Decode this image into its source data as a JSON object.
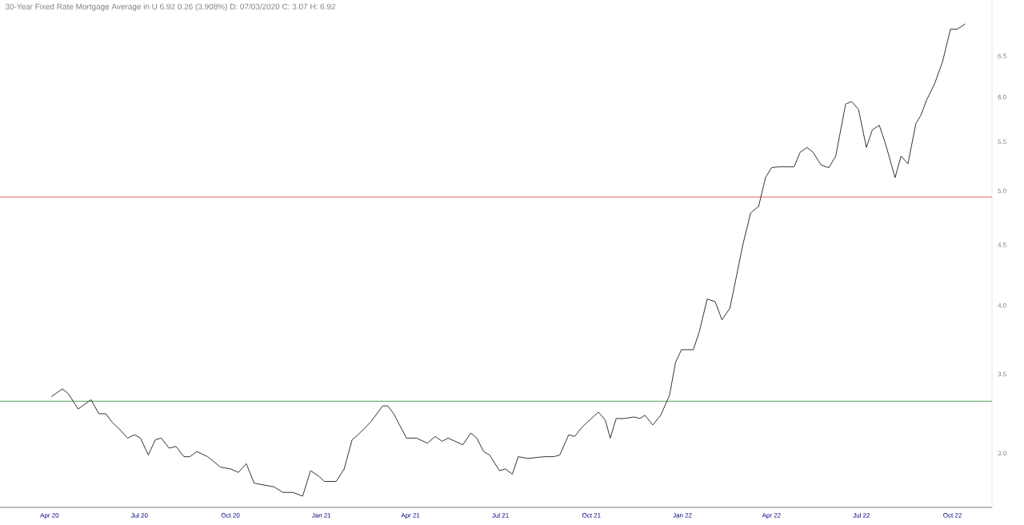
{
  "chart_data": {
    "type": "line",
    "title": "30-Year Fixed Rate Mortgage Average in U 6.92 0.26 (3.908%) D: 07/03/2020 C: 3.07 H: 6.92",
    "x": [
      "2020-04-03",
      "2020-04-14",
      "2020-04-20",
      "2020-04-30",
      "2020-05-13",
      "2020-05-21",
      "2020-05-28",
      "2020-06-03",
      "2020-06-13",
      "2020-06-19",
      "2020-06-26",
      "2020-07-02",
      "2020-07-10",
      "2020-07-17",
      "2020-07-23",
      "2020-07-31",
      "2020-08-07",
      "2020-08-15",
      "2020-08-21",
      "2020-08-28",
      "2020-09-08",
      "2020-09-21",
      "2020-10-01",
      "2020-10-09",
      "2020-10-17",
      "2020-10-25",
      "2020-11-04",
      "2020-11-14",
      "2020-11-23",
      "2020-12-03",
      "2020-12-13",
      "2020-12-21",
      "2020-12-29",
      "2021-01-04",
      "2021-01-16",
      "2021-01-24",
      "2021-02-01",
      "2021-02-07",
      "2021-02-20",
      "2021-03-04",
      "2021-03-09",
      "2021-03-15",
      "2021-03-28",
      "2021-04-07",
      "2021-04-18",
      "2021-04-26",
      "2021-05-03",
      "2021-05-09",
      "2021-05-24",
      "2021-06-01",
      "2021-06-07",
      "2021-06-14",
      "2021-06-20",
      "2021-06-30",
      "2021-07-06",
      "2021-07-13",
      "2021-07-19",
      "2021-07-29",
      "2021-08-14",
      "2021-08-24",
      "2021-08-30",
      "2021-09-08",
      "2021-09-14",
      "2021-09-22",
      "2021-10-08",
      "2021-10-15",
      "2021-10-20",
      "2021-10-26",
      "2021-11-03",
      "2021-11-13",
      "2021-11-19",
      "2021-11-24",
      "2021-12-02",
      "2021-12-10",
      "2021-12-19",
      "2021-12-25",
      "2021-12-31",
      "2022-01-12",
      "2022-01-18",
      "2022-01-26",
      "2022-02-03",
      "2022-02-10",
      "2022-02-18",
      "2022-02-25",
      "2022-03-03",
      "2022-03-11",
      "2022-03-19",
      "2022-03-26",
      "2022-04-01",
      "2022-04-09",
      "2022-04-17",
      "2022-04-24",
      "2022-04-30",
      "2022-05-07",
      "2022-05-13",
      "2022-05-21",
      "2022-05-29",
      "2022-06-05",
      "2022-06-15",
      "2022-06-21",
      "2022-06-28",
      "2022-07-06",
      "2022-07-12",
      "2022-07-19",
      "2022-07-25",
      "2022-08-04",
      "2022-08-10",
      "2022-08-17",
      "2022-08-25",
      "2022-08-30",
      "2022-09-05",
      "2022-09-13",
      "2022-09-21",
      "2022-09-29",
      "2022-10-06",
      "2022-10-14"
    ],
    "series": [
      {
        "color": "#333333",
        "values": [
          3.35,
          3.4,
          3.37,
          3.27,
          3.33,
          3.24,
          3.24,
          3.19,
          3.13,
          3.09,
          3.11,
          3.09,
          2.99,
          3.08,
          3.09,
          3.03,
          3.04,
          2.98,
          2.98,
          3.01,
          2.98,
          2.92,
          2.91,
          2.89,
          2.94,
          2.83,
          2.82,
          2.81,
          2.78,
          2.78,
          2.76,
          2.9,
          2.87,
          2.84,
          2.84,
          2.91,
          3.08,
          3.11,
          3.19,
          3.29,
          3.29,
          3.24,
          3.09,
          3.09,
          3.06,
          3.1,
          3.07,
          3.09,
          3.05,
          3.12,
          3.09,
          3.01,
          2.99,
          2.9,
          2.91,
          2.88,
          2.98,
          2.97,
          2.98,
          2.98,
          2.99,
          3.11,
          3.1,
          3.16,
          3.25,
          3.2,
          3.09,
          3.21,
          3.21,
          3.22,
          3.21,
          3.23,
          3.17,
          3.23,
          3.36,
          3.58,
          3.67,
          3.67,
          3.8,
          4.05,
          4.03,
          3.89,
          3.98,
          4.25,
          4.5,
          4.79,
          4.85,
          5.13,
          5.23,
          5.24,
          5.24,
          5.24,
          5.39,
          5.44,
          5.39,
          5.26,
          5.23,
          5.35,
          5.92,
          5.95,
          5.86,
          5.44,
          5.63,
          5.68,
          5.49,
          5.13,
          5.35,
          5.27,
          5.7,
          5.79,
          5.97,
          6.16,
          6.43,
          6.85,
          6.85,
          6.92
        ]
      }
    ],
    "log": "y",
    "xlim": [
      "2020-02-11",
      "2022-11-10"
    ],
    "xticks": [
      {
        "value": "2020-04-01",
        "label": "Apr 20"
      },
      {
        "value": "2020-07-01",
        "label": "Jul 20"
      },
      {
        "value": "2020-10-01",
        "label": "Oct 20"
      },
      {
        "value": "2021-01-01",
        "label": "Jan 21"
      },
      {
        "value": "2021-04-01",
        "label": "Apr 21"
      },
      {
        "value": "2021-07-01",
        "label": "Jul 21"
      },
      {
        "value": "2021-10-01",
        "label": "Oct 21"
      },
      {
        "value": "2022-01-01",
        "label": "Jan 22"
      },
      {
        "value": "2022-04-01",
        "label": "Apr 22"
      },
      {
        "value": "2022-07-01",
        "label": "Jul 22"
      },
      {
        "value": "2022-10-01",
        "label": "Oct 22"
      }
    ],
    "ylim": [
      2.7,
      7.25
    ],
    "yticks": [
      {
        "value": 3.0,
        "label": "3.0"
      },
      {
        "value": 3.5,
        "label": "3.5"
      },
      {
        "value": 4.0,
        "label": "4.0"
      },
      {
        "value": 4.5,
        "label": "4.5"
      },
      {
        "value": 5.0,
        "label": "5.0"
      },
      {
        "value": 5.5,
        "label": "5.5"
      },
      {
        "value": 6.0,
        "label": "6.0"
      },
      {
        "value": 6.5,
        "label": "6.5"
      }
    ],
    "ref_lines": [
      {
        "axis": "y",
        "value": 4.94,
        "color": "#f08080"
      },
      {
        "axis": "y",
        "value": 3.32,
        "color": "#77b377"
      }
    ]
  }
}
